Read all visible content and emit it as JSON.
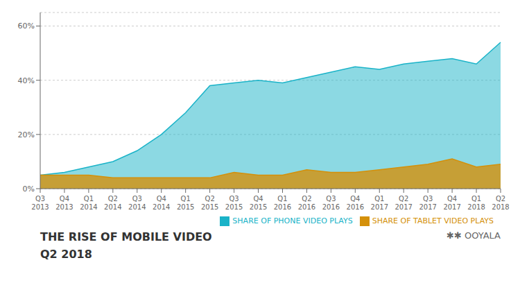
{
  "chart_data": {
    "type": "area",
    "title": "THE RISE OF MOBILE VIDEO",
    "subtitle": "Q2 2018",
    "annotations": [
      "✱✱ OOYALA"
    ],
    "categories": [
      "Q3\n2013",
      "Q4\n2013",
      "Q1\n2014",
      "Q2\n2014",
      "Q3\n2014",
      "Q4\n2014",
      "Q1\n2015",
      "Q2\n2015",
      "Q3\n2015",
      "Q4\n2015",
      "Q1\n2016",
      "Q2\n2016",
      "Q3\n2016",
      "Q4\n2016",
      "Q1\n2017",
      "Q2\n2017",
      "Q3\n2017",
      "Q4\n2017",
      "Q1\n2018",
      "Q2\n2018"
    ],
    "series": [
      {
        "name": "SHARE OF PHONE VIDEO PLAYS",
        "color": "#1ab3c8",
        "values": [
          5,
          6,
          8,
          10,
          14,
          20,
          28,
          38,
          39,
          40,
          39,
          41,
          43,
          45,
          44,
          46,
          47,
          48,
          46,
          54
        ]
      },
      {
        "name": "SHARE OF TABLET VIDEO PLAYS",
        "color": "#d4900a",
        "values": [
          5,
          5,
          5,
          4,
          4,
          4,
          4,
          4,
          6,
          5,
          5,
          7,
          6,
          6,
          7,
          8,
          9,
          11,
          8,
          9
        ]
      }
    ],
    "ylim": [
      0,
      65
    ],
    "yticks": [
      {
        "value": 0,
        "label": "0%"
      },
      {
        "value": 20,
        "label": "20%"
      },
      {
        "value": 40,
        "label": "40%"
      },
      {
        "value": 60,
        "label": "60%"
      }
    ],
    "grid": true,
    "legend": "bottom"
  }
}
